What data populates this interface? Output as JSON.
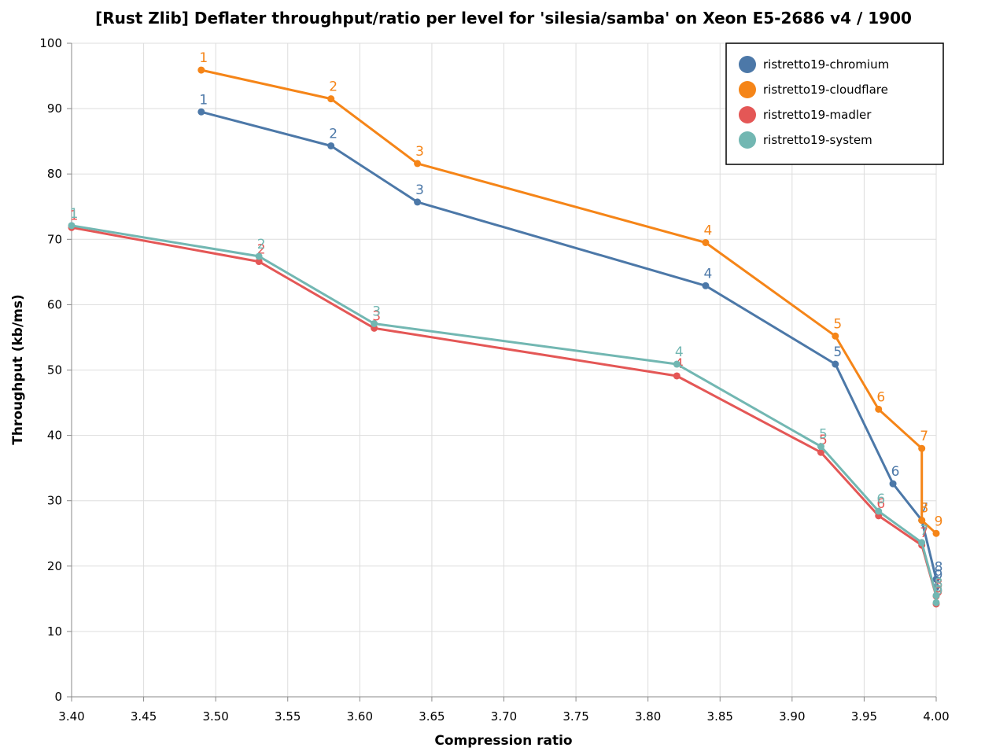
{
  "chart_data": {
    "type": "line",
    "title": "[Rust Zlib] Deflater throughput/ratio per level for 'silesia/samba' on Xeon E5-2686 v4 / 1900",
    "xlabel": "Compression ratio",
    "ylabel": "Throughput (kb/ms)",
    "xlim": [
      3.4,
      4.0
    ],
    "ylim": [
      0,
      100
    ],
    "xticks": [
      "3.40",
      "3.45",
      "3.50",
      "3.55",
      "3.60",
      "3.65",
      "3.70",
      "3.75",
      "3.80",
      "3.85",
      "3.90",
      "3.95",
      "4.00"
    ],
    "yticks": [
      "0",
      "10",
      "20",
      "30",
      "40",
      "50",
      "60",
      "70",
      "80",
      "90",
      "100"
    ],
    "grid": true,
    "legend_position": "top-right",
    "series": [
      {
        "name": "ristretto19-chromium",
        "color": "#4c78a8",
        "points": [
          {
            "level": "1",
            "x": 3.49,
            "y": 89.5
          },
          {
            "level": "2",
            "x": 3.58,
            "y": 84.3
          },
          {
            "level": "3",
            "x": 3.64,
            "y": 75.7
          },
          {
            "level": "4",
            "x": 3.84,
            "y": 62.9
          },
          {
            "level": "5",
            "x": 3.93,
            "y": 50.9
          },
          {
            "level": "6",
            "x": 3.97,
            "y": 32.6
          },
          {
            "level": "7",
            "x": 3.99,
            "y": 27.0
          },
          {
            "level": "8",
            "x": 4.0,
            "y": 18.0
          },
          {
            "level": "9",
            "x": 4.0,
            "y": 16.8
          }
        ]
      },
      {
        "name": "ristretto19-cloudflare",
        "color": "#f58518",
        "points": [
          {
            "level": "1",
            "x": 3.49,
            "y": 95.9
          },
          {
            "level": "2",
            "x": 3.58,
            "y": 91.5
          },
          {
            "level": "3",
            "x": 3.64,
            "y": 81.6
          },
          {
            "level": "4",
            "x": 3.84,
            "y": 69.5
          },
          {
            "level": "5",
            "x": 3.93,
            "y": 55.2
          },
          {
            "level": "6",
            "x": 3.96,
            "y": 44.0
          },
          {
            "level": "7",
            "x": 3.99,
            "y": 38.0
          },
          {
            "level": "8",
            "x": 3.99,
            "y": 27.0
          },
          {
            "level": "9",
            "x": 4.0,
            "y": 25.0
          }
        ]
      },
      {
        "name": "ristretto19-madler",
        "color": "#e45756",
        "points": [
          {
            "level": "1",
            "x": 3.4,
            "y": 71.8
          },
          {
            "level": "2",
            "x": 3.53,
            "y": 66.6
          },
          {
            "level": "3",
            "x": 3.61,
            "y": 56.4
          },
          {
            "level": "4",
            "x": 3.82,
            "y": 49.1
          },
          {
            "level": "5",
            "x": 3.92,
            "y": 37.4
          },
          {
            "level": "6",
            "x": 3.96,
            "y": 27.7
          },
          {
            "level": "7",
            "x": 3.99,
            "y": 23.2
          },
          {
            "level": "8",
            "x": 4.0,
            "y": 15.4
          },
          {
            "level": "9",
            "x": 4.0,
            "y": 14.2
          }
        ]
      },
      {
        "name": "ristretto19-system",
        "color": "#72b7b2",
        "points": [
          {
            "level": "1",
            "x": 3.4,
            "y": 72.1
          },
          {
            "level": "2",
            "x": 3.53,
            "y": 67.4
          },
          {
            "level": "3",
            "x": 3.61,
            "y": 57.1
          },
          {
            "level": "4",
            "x": 3.82,
            "y": 50.9
          },
          {
            "level": "5",
            "x": 3.92,
            "y": 38.3
          },
          {
            "level": "6",
            "x": 3.96,
            "y": 28.4
          },
          {
            "level": "7",
            "x": 3.99,
            "y": 23.6
          },
          {
            "level": "8",
            "x": 4.0,
            "y": 15.5
          },
          {
            "level": "9",
            "x": 4.0,
            "y": 14.4
          }
        ]
      }
    ]
  }
}
